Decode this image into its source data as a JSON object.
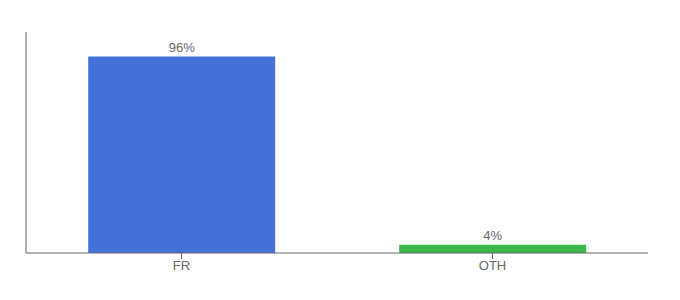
{
  "chart_data": {
    "type": "bar",
    "categories": [
      "FR",
      "OTH"
    ],
    "values": [
      96,
      4
    ],
    "colors": [
      "#4472db",
      "#3cb84a"
    ],
    "value_labels": [
      "96%",
      "4%"
    ],
    "data_labels": true,
    "ylim": [
      0,
      108
    ],
    "tick_labels": "x"
  }
}
